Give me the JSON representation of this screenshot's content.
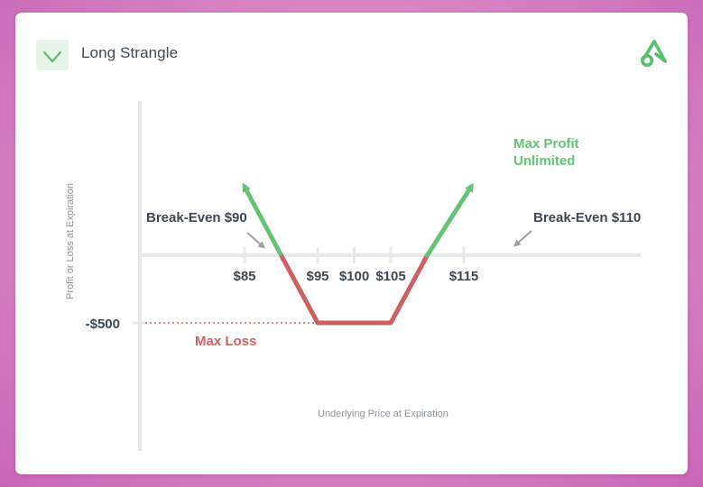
{
  "header": {
    "title": "Long Strangle",
    "icon": "payoff-v-icon",
    "logo": "brand-logo-icon"
  },
  "colors": {
    "profit": "#66c375",
    "loss": "#cc6062",
    "axis": "#e6e9ec",
    "text": "#3d4855",
    "pointer": "#9aa0a6"
  },
  "chart_data": {
    "type": "line",
    "title": "Long Strangle",
    "xlabel": "Underlying Price at Expiration",
    "ylabel": "Profit or Loss at Expiration",
    "x_ticks": [
      85,
      95,
      100,
      105,
      115
    ],
    "x_tick_labels": [
      "$85",
      "$95",
      "$100",
      "$105",
      "$115"
    ],
    "y_ticks": [
      -500
    ],
    "y_tick_labels": [
      "-$500"
    ],
    "xlim": [
      75,
      120
    ],
    "ylim": [
      -500,
      500
    ],
    "series": [
      {
        "x": [
          85,
          90,
          95,
          105,
          110,
          116
        ],
        "y": [
          500,
          0,
          -500,
          -500,
          0,
          500
        ]
      }
    ],
    "break_even_points": [
      90,
      110
    ],
    "max_loss": -500,
    "annotations": {
      "break_even_low": "Break-Even $90",
      "break_even_high": "Break-Even $110",
      "max_profit": [
        "Max Profit",
        "Unlimited"
      ],
      "max_loss": "Max Loss"
    },
    "grid": false,
    "legend": "none"
  }
}
